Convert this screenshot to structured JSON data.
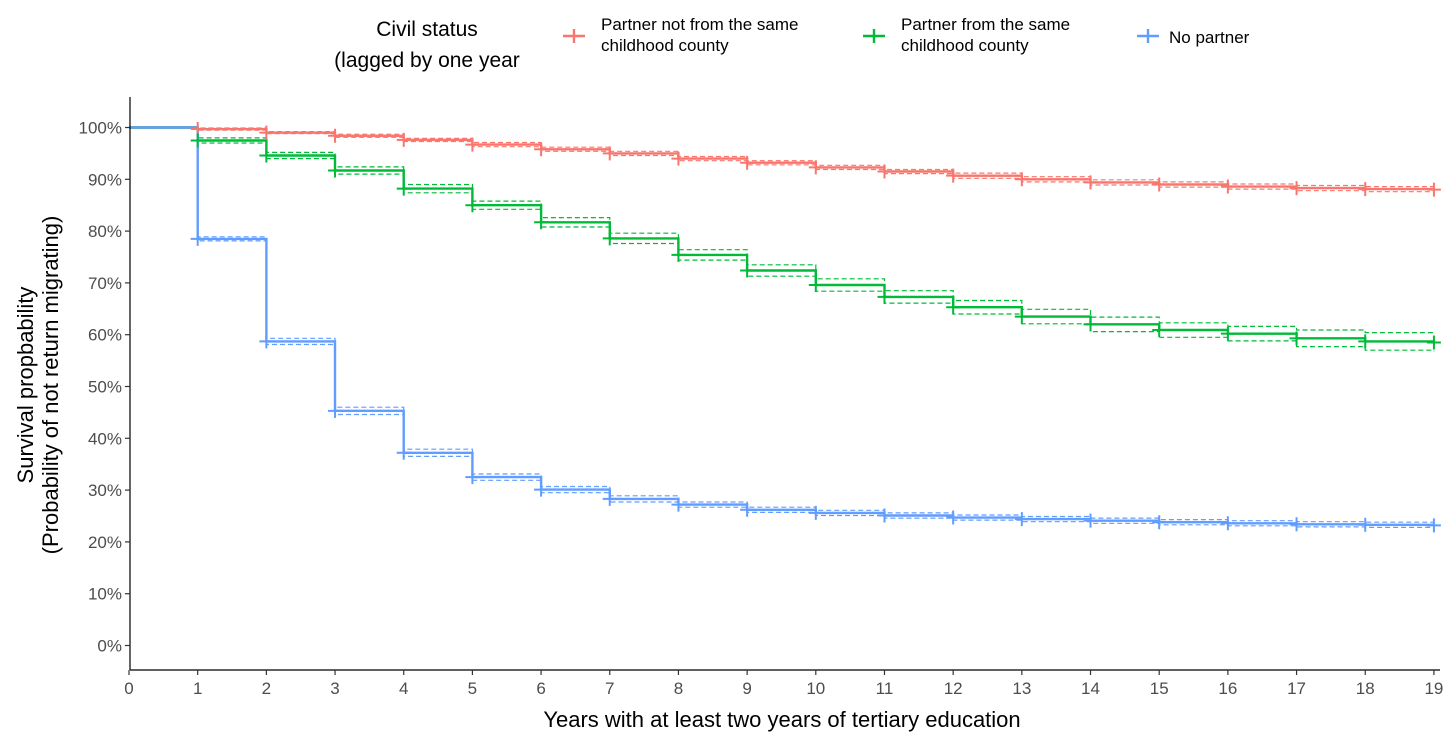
{
  "chart_data": {
    "type": "line",
    "subtype": "kaplan-meier step survival curve with censoring marks and dashed confidence bands",
    "xlabel": "Years with at least two years of tertiary education",
    "ylabel_lines": [
      "Survival propbability",
      "(Probability of not return migrating)"
    ],
    "x_ticks": [
      0,
      1,
      2,
      3,
      4,
      5,
      6,
      7,
      8,
      9,
      10,
      11,
      12,
      13,
      14,
      15,
      16,
      17,
      18,
      19
    ],
    "y_ticks": [
      0,
      10,
      20,
      30,
      40,
      50,
      60,
      70,
      80,
      90,
      100
    ],
    "y_tick_suffix": "%",
    "xlim": [
      0,
      19
    ],
    "ylim": [
      0,
      100
    ],
    "grid": false,
    "legend": {
      "position": "top",
      "title_lines": [
        "Civil status",
        "(lagged by one year"
      ],
      "entries": [
        {
          "series_index": 0,
          "label_lines": [
            "Partner not from the same",
            "childhood county"
          ]
        },
        {
          "series_index": 1,
          "label_lines": [
            "Partner from the same",
            "childhood county"
          ]
        },
        {
          "series_index": 2,
          "label_lines": [
            "No partner"
          ]
        }
      ]
    },
    "x": [
      0,
      1,
      2,
      3,
      4,
      5,
      6,
      7,
      8,
      9,
      10,
      11,
      12,
      13,
      14,
      15,
      16,
      17,
      18,
      19
    ],
    "series": [
      {
        "name": "Partner not from the same childhood county",
        "color": "#F8766D",
        "values": [
          100,
          99.7,
          99.0,
          98.4,
          97.6,
          96.7,
          95.8,
          95.0,
          94.0,
          93.2,
          92.3,
          91.5,
          90.7,
          90.0,
          89.4,
          89.0,
          88.6,
          88.3,
          88.1,
          88.0
        ],
        "ci_lower": [
          100,
          99.5,
          98.8,
          98.1,
          97.3,
          96.3,
          95.4,
          94.6,
          93.6,
          92.8,
          91.9,
          91.1,
          90.2,
          89.5,
          88.9,
          88.5,
          88.1,
          87.8,
          87.6,
          87.5
        ],
        "ci_upper": [
          100,
          99.9,
          99.2,
          98.7,
          97.9,
          97.1,
          96.2,
          95.4,
          94.4,
          93.6,
          92.7,
          91.9,
          91.2,
          90.5,
          89.9,
          89.5,
          89.1,
          88.8,
          88.6,
          88.5
        ]
      },
      {
        "name": "Partner from the same childhood county",
        "color": "#00BA38",
        "values": [
          100,
          97.5,
          94.6,
          91.7,
          88.2,
          85.0,
          81.7,
          78.6,
          75.4,
          72.4,
          69.6,
          67.3,
          65.3,
          63.5,
          62.0,
          60.9,
          60.2,
          59.3,
          58.7,
          58.5
        ],
        "ci_lower": [
          100,
          97.0,
          94.0,
          91.0,
          87.4,
          84.2,
          80.8,
          77.6,
          74.4,
          71.3,
          68.4,
          66.1,
          64.0,
          62.1,
          60.6,
          59.5,
          58.8,
          57.7,
          57.0,
          56.8
        ],
        "ci_upper": [
          100,
          98.0,
          95.2,
          92.4,
          89.0,
          85.8,
          82.6,
          79.6,
          76.4,
          73.5,
          70.8,
          68.5,
          66.6,
          64.9,
          63.4,
          62.3,
          61.6,
          60.9,
          60.4,
          60.2
        ]
      },
      {
        "name": "No partner",
        "color": "#619CFF",
        "values": [
          100,
          78.5,
          58.7,
          45.3,
          37.2,
          32.5,
          30.1,
          28.3,
          27.2,
          26.2,
          25.6,
          25.1,
          24.7,
          24.4,
          24.1,
          23.8,
          23.6,
          23.4,
          23.3,
          23.2
        ],
        "ci_lower": [
          100,
          78.1,
          58.1,
          44.6,
          36.5,
          31.9,
          29.5,
          27.7,
          26.7,
          25.7,
          25.1,
          24.6,
          24.2,
          23.9,
          23.6,
          23.3,
          23.1,
          22.9,
          22.8,
          22.7
        ],
        "ci_upper": [
          100,
          78.9,
          59.3,
          46.0,
          37.9,
          33.1,
          30.7,
          28.9,
          27.7,
          26.7,
          26.1,
          25.6,
          25.2,
          24.9,
          24.6,
          24.3,
          24.1,
          23.9,
          23.8,
          23.7
        ]
      }
    ],
    "censor_marks_at": [
      1,
      2,
      3,
      4,
      5,
      6,
      7,
      8,
      9,
      10,
      11,
      12,
      13,
      14,
      15,
      16,
      17,
      18,
      19
    ]
  }
}
